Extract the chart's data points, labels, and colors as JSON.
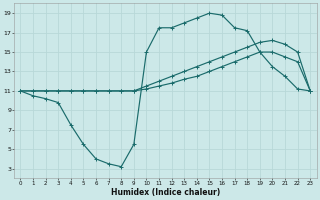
{
  "xlabel": "Humidex (Indice chaleur)",
  "bg_color": "#cce8e8",
  "line_color": "#1a6b6b",
  "grid_color": "#b8d8d8",
  "xlim": [
    -0.5,
    23.5
  ],
  "ylim": [
    2,
    20
  ],
  "xticks": [
    0,
    1,
    2,
    3,
    4,
    5,
    6,
    7,
    8,
    9,
    10,
    11,
    12,
    13,
    14,
    15,
    16,
    17,
    18,
    19,
    20,
    21,
    22,
    23
  ],
  "yticks": [
    3,
    5,
    7,
    9,
    11,
    13,
    15,
    17,
    19
  ],
  "line1_x": [
    0,
    1,
    2,
    3,
    4,
    5,
    6,
    7,
    8,
    9,
    10,
    11,
    12,
    13,
    14,
    15,
    16,
    17,
    18,
    19,
    20,
    21,
    22,
    23
  ],
  "line1_y": [
    11,
    10.5,
    10.2,
    9.8,
    7.5,
    5.5,
    4.0,
    3.5,
    3.2,
    5.5,
    15.0,
    17.5,
    17.5,
    18.0,
    18.5,
    19.0,
    18.8,
    17.5,
    17.2,
    15.0,
    13.5,
    12.5,
    11.2,
    11.0
  ],
  "line2_x": [
    0,
    1,
    2,
    3,
    4,
    5,
    6,
    7,
    8,
    9,
    10,
    11,
    12,
    13,
    14,
    15,
    16,
    17,
    18,
    19,
    20,
    21,
    22,
    23
  ],
  "line2_y": [
    11,
    11,
    11,
    11,
    11,
    11,
    11,
    11,
    11,
    11,
    11.5,
    12.0,
    12.5,
    13.0,
    13.5,
    14.0,
    14.5,
    15.0,
    15.5,
    16.0,
    16.2,
    15.8,
    15.0,
    11.0
  ],
  "line3_x": [
    0,
    1,
    2,
    3,
    4,
    5,
    6,
    7,
    8,
    9,
    10,
    11,
    12,
    13,
    14,
    15,
    16,
    17,
    18,
    19,
    20,
    21,
    22,
    23
  ],
  "line3_y": [
    11,
    11,
    11,
    11,
    11,
    11,
    11,
    11,
    11,
    11,
    11.2,
    11.5,
    11.8,
    12.2,
    12.5,
    13.0,
    13.5,
    14.0,
    14.5,
    15.0,
    15.0,
    14.5,
    14.0,
    11.0
  ]
}
